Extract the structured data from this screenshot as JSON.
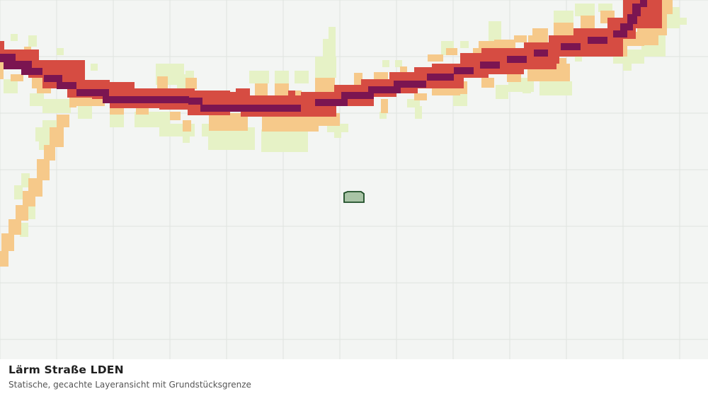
{
  "map": {
    "layer": "Lärm Straße LDEN",
    "colors": {
      "background": "#f3f5f3",
      "grid": "#dfe3df",
      "noise_band_light": "#e6f2c6",
      "noise_band_medium": "#f6c98a",
      "noise_band_high": "#d64c42",
      "noise_band_very_high": "#7b1551",
      "parcel_fill": "#a9c4a6",
      "parcel_stroke": "#1d4d26"
    }
  },
  "caption": {
    "title": "Lärm Straße LDEN",
    "subtitle": "Statische, gecachte Layeransicht mit Grundstücksgrenze"
  }
}
